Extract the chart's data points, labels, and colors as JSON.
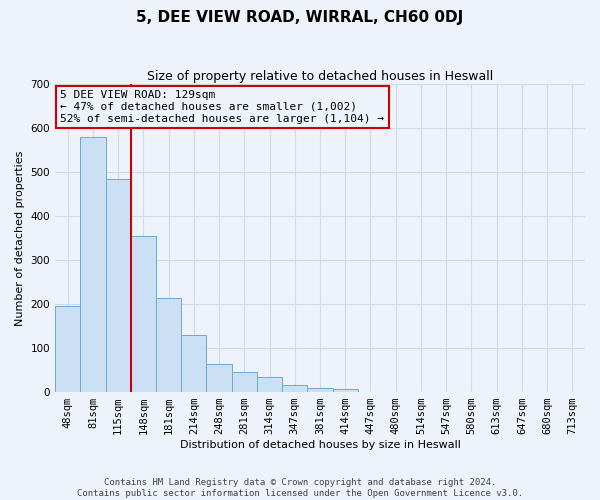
{
  "title": "5, DEE VIEW ROAD, WIRRAL, CH60 0DJ",
  "subtitle": "Size of property relative to detached houses in Heswall",
  "xlabel": "Distribution of detached houses by size in Heswall",
  "ylabel": "Number of detached properties",
  "footnote1": "Contains HM Land Registry data © Crown copyright and database right 2024.",
  "footnote2": "Contains public sector information licensed under the Open Government Licence v3.0.",
  "bin_labels": [
    "48sqm",
    "81sqm",
    "115sqm",
    "148sqm",
    "181sqm",
    "214sqm",
    "248sqm",
    "281sqm",
    "314sqm",
    "347sqm",
    "381sqm",
    "414sqm",
    "447sqm",
    "480sqm",
    "514sqm",
    "547sqm",
    "580sqm",
    "613sqm",
    "647sqm",
    "680sqm",
    "713sqm"
  ],
  "bar_heights": [
    195,
    580,
    485,
    355,
    215,
    130,
    63,
    45,
    35,
    17,
    10,
    7,
    0,
    0,
    0,
    0,
    0,
    0,
    0,
    0,
    0
  ],
  "bar_color": "#cce0f5",
  "bar_edge_color": "#6aaad4",
  "grid_color": "#d0daea",
  "property_line_color": "#cc0000",
  "property_line_x": 2.5,
  "annotation_text": "5 DEE VIEW ROAD: 129sqm\n← 47% of detached houses are smaller (1,002)\n52% of semi-detached houses are larger (1,104) →",
  "annotation_box_color": "#cc0000",
  "ylim": [
    0,
    700
  ],
  "yticks": [
    0,
    100,
    200,
    300,
    400,
    500,
    600,
    700
  ],
  "background_color": "#eef2fa",
  "title_fontsize": 11,
  "subtitle_fontsize": 9,
  "ylabel_fontsize": 8,
  "xlabel_fontsize": 8,
  "tick_fontsize": 7.5,
  "annotation_fontsize": 8
}
